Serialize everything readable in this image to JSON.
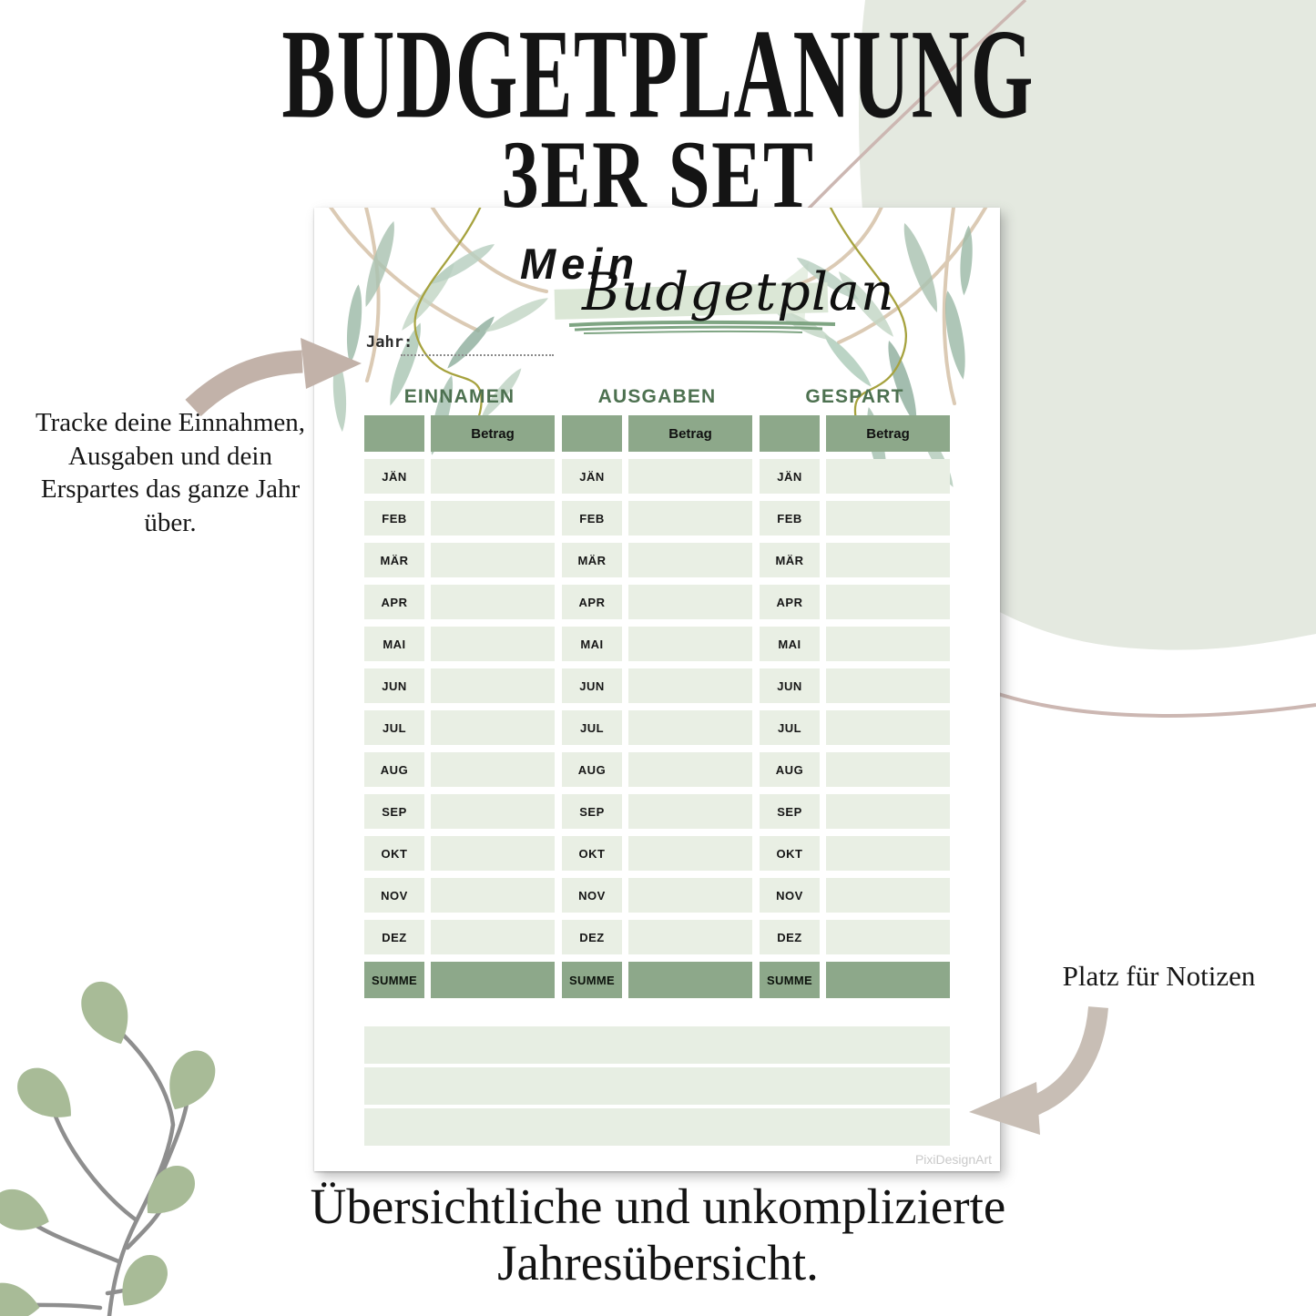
{
  "title": {
    "line1": "BUDGETPLANUNG",
    "line2": "3ER SET"
  },
  "left_annotation": {
    "text": "Tracke deine Einnahmen,\nAusgaben und dein\nErspartes das ganze Jahr\nüber."
  },
  "right_annotation": {
    "text": "Platz für Notizen"
  },
  "bottom_caption": {
    "text": "Übersichtliche und unkomplizierte\nJahresübersicht."
  },
  "document": {
    "heading": {
      "word1": "Mein",
      "word2": "Budgetplan"
    },
    "year_label": "Jahr:",
    "columns": [
      {
        "title": "EINNAMEN",
        "amount_header": "Betrag",
        "sum_label": "SUMME"
      },
      {
        "title": "AUSGABEN",
        "amount_header": "Betrag",
        "sum_label": "SUMME"
      },
      {
        "title": "GESPART",
        "amount_header": "Betrag",
        "sum_label": "SUMME"
      }
    ],
    "months": [
      "JÄN",
      "FEB",
      "MÄR",
      "APR",
      "MAI",
      "JUN",
      "JUL",
      "AUG",
      "SEP",
      "OKT",
      "NOV",
      "DEZ"
    ],
    "notes_rows": 3,
    "watermark": "PixiDesignArt"
  },
  "colors": {
    "ink": "#141414",
    "blob_green": "#e4e9e0",
    "line_taupe": "#ccb7b2",
    "arrow_taupe": "#c2b2a9",
    "arrow_taupe_2": "#c8beb5",
    "leaf_green": "#a8bb97",
    "stem_gray": "#8e8e8e",
    "band_green": "#dbe7d6",
    "brush_green": "#7fa583",
    "accent_text_green": "#4d7150",
    "table_header_green": "#8da88a",
    "cell_green": "#e9efe4",
    "notes_green": "#e7eee3",
    "watermark_gray": "#c9c9c9"
  }
}
